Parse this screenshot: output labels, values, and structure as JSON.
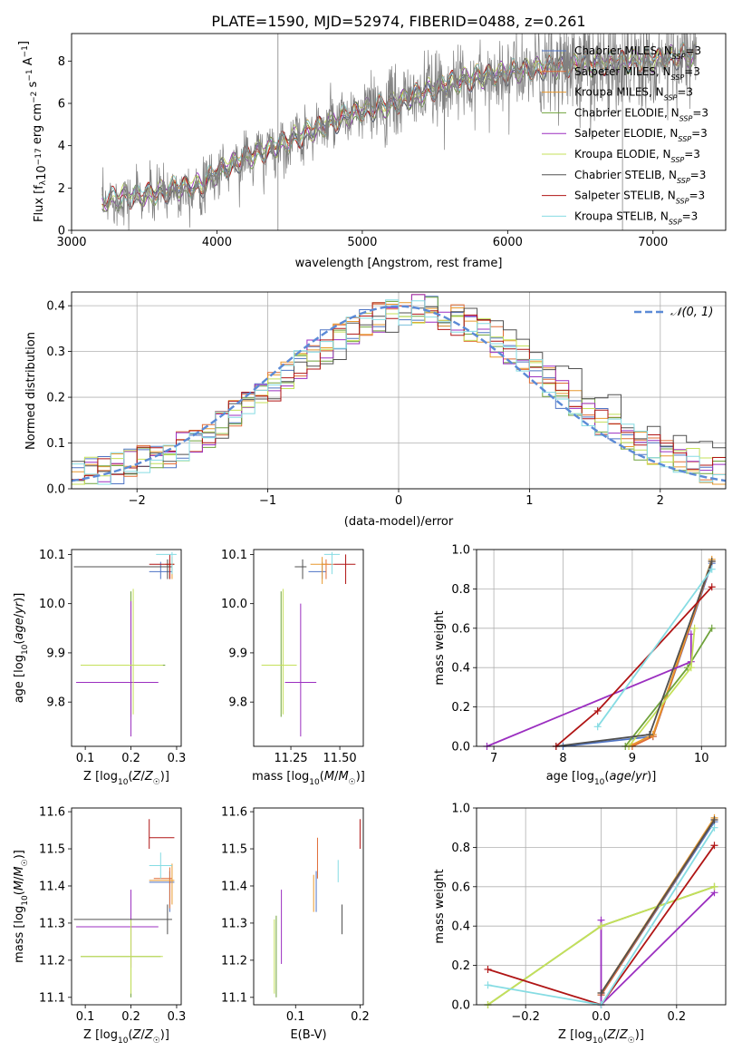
{
  "figure_title": "PLATE=1590, MJD=52974, FIBERID=0488, z=0.261",
  "colors": {
    "chabrier_miles": "#4e73c4",
    "salpeter_miles": "#e06c35",
    "kroupa_miles": "#e8982d",
    "chabrier_elodie": "#6fa23b",
    "salpeter_elodie": "#9b2fc0",
    "kroupa_elodie": "#c4e05a",
    "chabrier_stelib": "#505050",
    "salpeter_stelib": "#b01515",
    "kroupa_stelib": "#86dce3",
    "gauss": "#5b8ad6",
    "grid": "#b0b0b0",
    "data_spectrum": "#808080"
  },
  "chart_data": [
    {
      "id": "spectrum",
      "type": "line",
      "xlabel": "wavelength [Angstrom, rest frame]",
      "ylabel": "Flux [f_λ 10^-17 erg cm^-2 s^-1 A^-1]",
      "xlim": [
        3000,
        7500
      ],
      "ylim": [
        0,
        9.3
      ],
      "xticks": [
        "3000",
        "4000",
        "5000",
        "6000",
        "7000"
      ],
      "yticks": [
        "0",
        "2",
        "4",
        "6",
        "8"
      ],
      "grid": false,
      "legend_position": "top-right",
      "legend": [
        {
          "label": "Chabrier MILES, N_SSP=3",
          "color": "#4e73c4"
        },
        {
          "label": "Salpeter MILES, N_SSP=3",
          "color": "#e06c35"
        },
        {
          "label": "Kroupa MILES, N_SSP=3",
          "color": "#e8982d"
        },
        {
          "label": "Chabrier ELODIE, N_SSP=3",
          "color": "#6fa23b"
        },
        {
          "label": "Salpeter ELODIE, N_SSP=3",
          "color": "#9b2fc0"
        },
        {
          "label": "Kroupa ELODIE, N_SSP=3",
          "color": "#c4e05a"
        },
        {
          "label": "Chabrier STELIB, N_SSP=3",
          "color": "#505050"
        },
        {
          "label": "Salpeter STELIB, N_SSP=3",
          "color": "#b01515"
        },
        {
          "label": "Kroupa STELIB, N_SSP=3",
          "color": "#86dce3"
        }
      ],
      "continuum": [
        [
          3200,
          1.2
        ],
        [
          3300,
          1.5
        ],
        [
          3500,
          1.6
        ],
        [
          3700,
          1.9
        ],
        [
          3900,
          2.1
        ],
        [
          4000,
          2.7
        ],
        [
          4200,
          3.4
        ],
        [
          4400,
          3.9
        ],
        [
          4600,
          4.5
        ],
        [
          4800,
          5.1
        ],
        [
          5000,
          5.6
        ],
        [
          5200,
          5.9
        ],
        [
          5400,
          6.4
        ],
        [
          5600,
          6.9
        ],
        [
          5800,
          7.2
        ],
        [
          6000,
          7.4
        ],
        [
          6200,
          7.6
        ],
        [
          6500,
          7.8
        ],
        [
          6800,
          7.9
        ],
        [
          7000,
          8.0
        ],
        [
          7200,
          8.2
        ]
      ]
    },
    {
      "id": "residuals",
      "type": "area",
      "xlabel": "(data-model)/error",
      "ylabel": "Normed distribution",
      "xlim": [
        -2.5,
        2.5
      ],
      "ylim": [
        0,
        0.43
      ],
      "xticks": [
        "−2",
        "−1",
        "0",
        "1",
        "2"
      ],
      "yticks": [
        "0.0",
        "0.1",
        "0.2",
        "0.3",
        "0.4"
      ],
      "grid": true,
      "legend_position": "top-right",
      "legend": [
        {
          "label": "𝒩(0, 1)",
          "color": "#5b8ad6"
        }
      ],
      "bin_width": 0.1
    },
    {
      "id": "z_age",
      "type": "scatter",
      "xlabel": "Z [log10(Z/Z☉)]",
      "ylabel": "age  [log10(age/yr)]",
      "xlim": [
        0.07,
        0.31
      ],
      "ylim": [
        9.71,
        10.11
      ],
      "xticks": [
        "0.1",
        "0.2",
        "0.3"
      ],
      "yticks": [
        "9.8",
        "9.9",
        "10.0",
        "10.1"
      ],
      "points": [
        {
          "x": 0.265,
          "xlo": 0.24,
          "xhi": 0.29,
          "y": 10.065,
          "ylo": 10.05,
          "yhi": 10.085,
          "color": "#4e73c4"
        },
        {
          "x": 0.285,
          "xlo": 0.255,
          "xhi": 0.29,
          "y": 10.075,
          "ylo": 10.05,
          "yhi": 10.09,
          "color": "#e06c35"
        },
        {
          "x": 0.29,
          "xlo": 0.275,
          "xhi": 0.295,
          "y": 10.08,
          "ylo": 10.05,
          "yhi": 10.095,
          "color": "#e8982d"
        },
        {
          "x": 0.2,
          "xlo": 0.09,
          "xhi": 0.275,
          "y": 9.875,
          "ylo": 9.77,
          "yhi": 10.025,
          "color": "#6fa23b"
        },
        {
          "x": 0.2,
          "xlo": 0.08,
          "xhi": 0.26,
          "y": 9.84,
          "ylo": 9.73,
          "yhi": 10.005,
          "color": "#9b2fc0"
        },
        {
          "x": 0.205,
          "xlo": 0.09,
          "xhi": 0.27,
          "y": 9.875,
          "ylo": 9.775,
          "yhi": 10.03,
          "color": "#c4e05a"
        },
        {
          "x": 0.28,
          "xlo": 0.075,
          "xhi": 0.29,
          "y": 10.075,
          "ylo": 10.05,
          "yhi": 10.09,
          "color": "#505050"
        },
        {
          "x": 0.285,
          "xlo": 0.24,
          "xhi": 0.295,
          "y": 10.08,
          "ylo": 10.05,
          "yhi": 10.1,
          "color": "#b01515"
        },
        {
          "x": 0.29,
          "xlo": 0.255,
          "xhi": 0.3,
          "y": 10.1,
          "ylo": 10.06,
          "yhi": 10.105,
          "color": "#86dce3"
        }
      ]
    },
    {
      "id": "mass_age",
      "type": "scatter",
      "xlabel": "mass [log10(M/M☉)]",
      "ylabel": "",
      "xlim": [
        11.06,
        11.62
      ],
      "ylim": [
        9.71,
        10.11
      ],
      "xticks": [
        "11.25",
        "11.50"
      ],
      "yticks": [
        "9.8",
        "9.9",
        "10.0",
        "10.1"
      ],
      "points": [
        {
          "x": 11.41,
          "xlo": 11.34,
          "xhi": 11.43,
          "y": 10.065,
          "ylo": 10.05,
          "yhi": 10.085,
          "color": "#4e73c4"
        },
        {
          "x": 11.43,
          "xlo": 11.41,
          "xhi": 11.47,
          "y": 10.08,
          "ylo": 10.05,
          "yhi": 10.09,
          "color": "#e06c35"
        },
        {
          "x": 11.41,
          "xlo": 11.35,
          "xhi": 11.44,
          "y": 10.08,
          "ylo": 10.04,
          "yhi": 10.095,
          "color": "#e8982d"
        },
        {
          "x": 11.2,
          "xlo": 11.11,
          "xhi": 11.22,
          "y": 9.875,
          "ylo": 9.77,
          "yhi": 10.025,
          "color": "#6fa23b"
        },
        {
          "x": 11.3,
          "xlo": 11.22,
          "xhi": 11.38,
          "y": 9.84,
          "ylo": 9.73,
          "yhi": 10.0,
          "color": "#9b2fc0"
        },
        {
          "x": 11.21,
          "xlo": 11.1,
          "xhi": 11.28,
          "y": 9.875,
          "ylo": 9.775,
          "yhi": 10.03,
          "color": "#c4e05a"
        },
        {
          "x": 11.31,
          "xlo": 11.27,
          "xhi": 11.33,
          "y": 10.075,
          "ylo": 10.05,
          "yhi": 10.09,
          "color": "#505050"
        },
        {
          "x": 11.53,
          "xlo": 11.47,
          "xhi": 11.58,
          "y": 10.08,
          "ylo": 10.04,
          "yhi": 10.1,
          "color": "#b01515"
        },
        {
          "x": 11.46,
          "xlo": 11.42,
          "xhi": 11.5,
          "y": 10.1,
          "ylo": 10.06,
          "yhi": 10.105,
          "color": "#86dce3"
        }
      ]
    },
    {
      "id": "age_weight",
      "type": "line",
      "xlabel": "age  [log10(age/yr)]",
      "ylabel": "mass weight",
      "xlim": [
        6.75,
        10.35
      ],
      "ylim": [
        0,
        1.0
      ],
      "xticks": [
        "7",
        "8",
        "9",
        "10"
      ],
      "yticks": [
        "0.0",
        "0.2",
        "0.4",
        "0.6",
        "0.8",
        "1.0"
      ],
      "grid": true,
      "series": [
        {
          "color": "#4e73c4",
          "points": [
            [
              8.0,
              0.0
            ],
            [
              9.3,
              0.05
            ],
            [
              10.15,
              0.93
            ]
          ]
        },
        {
          "color": "#e06c35",
          "points": [
            [
              9.0,
              0.0
            ],
            [
              9.3,
              0.05
            ],
            [
              10.15,
              0.94
            ]
          ]
        },
        {
          "color": "#e8982d",
          "points": [
            [
              8.95,
              0.0
            ],
            [
              9.3,
              0.06
            ],
            [
              10.15,
              0.95
            ]
          ]
        },
        {
          "color": "#6fa23b",
          "points": [
            [
              8.9,
              0.0
            ],
            [
              9.8,
              0.4
            ],
            [
              10.15,
              0.6
            ]
          ]
        },
        {
          "color": "#9b2fc0",
          "points": [
            [
              6.9,
              0.0
            ],
            [
              9.85,
              0.43
            ],
            [
              9.85,
              0.57
            ]
          ]
        },
        {
          "color": "#c4e05a",
          "points": [
            [
              8.95,
              0.0
            ],
            [
              9.85,
              0.4
            ],
            [
              9.9,
              0.6
            ]
          ]
        },
        {
          "color": "#505050",
          "points": [
            [
              7.9,
              0.0
            ],
            [
              9.25,
              0.06
            ],
            [
              10.15,
              0.94
            ]
          ]
        },
        {
          "color": "#b01515",
          "points": [
            [
              7.9,
              0.0
            ],
            [
              8.5,
              0.18
            ],
            [
              10.15,
              0.81
            ]
          ]
        },
        {
          "color": "#86dce3",
          "points": [
            [
              8.5,
              0.1
            ],
            [
              10.15,
              0.9
            ]
          ]
        }
      ]
    },
    {
      "id": "z_mass",
      "type": "scatter",
      "xlabel": "Z [log10(Z/Z☉)]",
      "ylabel": "mass [log10(M/M☉)]",
      "xlim": [
        0.07,
        0.31
      ],
      "ylim": [
        11.08,
        11.61
      ],
      "xticks": [
        "0.1",
        "0.2",
        "0.3"
      ],
      "yticks": [
        "11.1",
        "11.2",
        "11.3",
        "11.4",
        "11.5",
        "11.6"
      ],
      "points": [
        {
          "x": 0.285,
          "xlo": 0.24,
          "xhi": 0.295,
          "y": 11.41,
          "ylo": 11.33,
          "yhi": 11.44,
          "color": "#4e73c4"
        },
        {
          "x": 0.285,
          "xlo": 0.25,
          "xhi": 0.29,
          "y": 11.42,
          "ylo": 11.34,
          "yhi": 11.45,
          "color": "#e06c35"
        },
        {
          "x": 0.29,
          "xlo": 0.24,
          "xhi": 0.295,
          "y": 11.415,
          "ylo": 11.35,
          "yhi": 11.46,
          "color": "#e8982d"
        },
        {
          "x": 0.2,
          "xlo": 0.09,
          "xhi": 0.265,
          "y": 11.21,
          "ylo": 11.1,
          "yhi": 11.3,
          "color": "#6fa23b"
        },
        {
          "x": 0.2,
          "xlo": 0.08,
          "xhi": 0.26,
          "y": 11.29,
          "ylo": 11.18,
          "yhi": 11.39,
          "color": "#9b2fc0"
        },
        {
          "x": 0.2,
          "xlo": 0.09,
          "xhi": 0.27,
          "y": 11.21,
          "ylo": 11.11,
          "yhi": 11.31,
          "color": "#c4e05a"
        },
        {
          "x": 0.28,
          "xlo": 0.075,
          "xhi": 0.29,
          "y": 11.31,
          "ylo": 11.27,
          "yhi": 11.35,
          "color": "#505050"
        },
        {
          "x": 0.24,
          "xlo": 0.24,
          "xhi": 0.295,
          "y": 11.53,
          "ylo": 11.5,
          "yhi": 11.58,
          "color": "#b01515"
        },
        {
          "x": 0.265,
          "xlo": 0.24,
          "xhi": 0.29,
          "y": 11.455,
          "ylo": 11.42,
          "yhi": 11.49,
          "color": "#86dce3"
        }
      ]
    },
    {
      "id": "ebv_mass",
      "type": "scatter",
      "xlabel": "E(B-V)",
      "ylabel": "",
      "xlim": [
        0.035,
        0.205
      ],
      "ylim": [
        11.08,
        11.61
      ],
      "xticks": [
        "0.1",
        "0.2"
      ],
      "yticks": [
        "11.1",
        "11.2",
        "11.3",
        "11.4",
        "11.5",
        "11.6"
      ],
      "points": [
        {
          "x": 0.132,
          "ylo": 11.33,
          "yhi": 11.44,
          "color": "#4e73c4"
        },
        {
          "x": 0.134,
          "ylo": 11.42,
          "yhi": 11.53,
          "color": "#e06c35"
        },
        {
          "x": 0.128,
          "ylo": 11.33,
          "yhi": 11.43,
          "color": "#e8982d"
        },
        {
          "x": 0.07,
          "ylo": 11.1,
          "yhi": 11.32,
          "color": "#6fa23b"
        },
        {
          "x": 0.078,
          "ylo": 11.19,
          "yhi": 11.39,
          "color": "#9b2fc0"
        },
        {
          "x": 0.067,
          "ylo": 11.11,
          "yhi": 11.31,
          "color": "#c4e05a"
        },
        {
          "x": 0.172,
          "ylo": 11.27,
          "yhi": 11.35,
          "color": "#505050"
        },
        {
          "x": 0.2,
          "ylo": 11.5,
          "yhi": 11.58,
          "color": "#b01515"
        },
        {
          "x": 0.166,
          "ylo": 11.41,
          "yhi": 11.47,
          "color": "#86dce3"
        }
      ]
    },
    {
      "id": "z_weight",
      "type": "line",
      "xlabel": "Z [log10(Z/Z☉)]",
      "ylabel": "mass weight",
      "xlim": [
        -0.33,
        0.33
      ],
      "ylim": [
        0,
        1.0
      ],
      "xticks": [
        "−0.2",
        "0.0",
        "0.2"
      ],
      "yticks": [
        "0.0",
        "0.2",
        "0.4",
        "0.6",
        "0.8",
        "1.0"
      ],
      "grid": true,
      "series": [
        {
          "color": "#4e73c4",
          "points": [
            [
              0.0,
              0.05
            ],
            [
              0.3,
              0.93
            ]
          ]
        },
        {
          "color": "#e06c35",
          "points": [
            [
              0.0,
              0.05
            ],
            [
              0.3,
              0.94
            ]
          ]
        },
        {
          "color": "#e8982d",
          "points": [
            [
              0.0,
              0.06
            ],
            [
              0.3,
              0.95
            ]
          ]
        },
        {
          "color": "#6fa23b",
          "points": [
            [
              -0.3,
              0.0
            ],
            [
              0.0,
              0.4
            ],
            [
              0.3,
              0.6
            ]
          ]
        },
        {
          "color": "#9b2fc0",
          "points": [
            [
              0.0,
              0.43
            ],
            [
              0.0,
              0.0
            ],
            [
              0.3,
              0.57
            ]
          ]
        },
        {
          "color": "#c4e05a",
          "points": [
            [
              -0.3,
              0.0
            ],
            [
              0.0,
              0.4
            ],
            [
              0.3,
              0.6
            ]
          ]
        },
        {
          "color": "#505050",
          "points": [
            [
              0.0,
              0.06
            ],
            [
              0.3,
              0.94
            ]
          ]
        },
        {
          "color": "#b01515",
          "points": [
            [
              -0.3,
              0.18
            ],
            [
              0.0,
              0.0
            ],
            [
              0.3,
              0.81
            ]
          ]
        },
        {
          "color": "#86dce3",
          "points": [
            [
              -0.3,
              0.1
            ],
            [
              0.0,
              0.0
            ],
            [
              0.3,
              0.9
            ]
          ]
        }
      ]
    }
  ]
}
